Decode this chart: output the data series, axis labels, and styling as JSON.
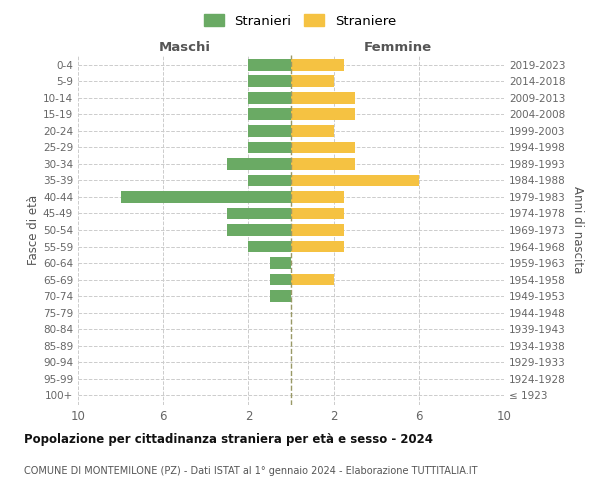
{
  "age_groups": [
    "100+",
    "95-99",
    "90-94",
    "85-89",
    "80-84",
    "75-79",
    "70-74",
    "65-69",
    "60-64",
    "55-59",
    "50-54",
    "45-49",
    "40-44",
    "35-39",
    "30-34",
    "25-29",
    "20-24",
    "15-19",
    "10-14",
    "5-9",
    "0-4"
  ],
  "birth_years": [
    "≤ 1923",
    "1924-1928",
    "1929-1933",
    "1934-1938",
    "1939-1943",
    "1944-1948",
    "1949-1953",
    "1954-1958",
    "1959-1963",
    "1964-1968",
    "1969-1973",
    "1974-1978",
    "1979-1983",
    "1984-1988",
    "1989-1993",
    "1994-1998",
    "1999-2003",
    "2004-2008",
    "2009-2013",
    "2014-2018",
    "2019-2023"
  ],
  "males": [
    0,
    0,
    0,
    0,
    0,
    0,
    1,
    1,
    1,
    2,
    3,
    3,
    8,
    2,
    3,
    2,
    2,
    2,
    2,
    2,
    2
  ],
  "females": [
    0,
    0,
    0,
    0,
    0,
    0,
    0,
    2,
    0,
    2.5,
    2.5,
    2.5,
    2.5,
    6,
    3,
    3,
    2,
    3,
    3,
    2,
    2.5
  ],
  "male_color": "#6aaa64",
  "female_color": "#f5c242",
  "center_line_color": "#999966",
  "grid_color": "#cccccc",
  "title": "Popolazione per cittadinanza straniera per età e sesso - 2024",
  "subtitle": "COMUNE DI MONTEMILONE (PZ) - Dati ISTAT al 1° gennaio 2024 - Elaborazione TUTTITALIA.IT",
  "xlabel_left": "Maschi",
  "xlabel_right": "Femmine",
  "ylabel_left": "Fasce di età",
  "ylabel_right": "Anni di nascita",
  "legend_stranieri": "Stranieri",
  "legend_straniere": "Straniere",
  "xlim": 10,
  "background_color": "#ffffff"
}
